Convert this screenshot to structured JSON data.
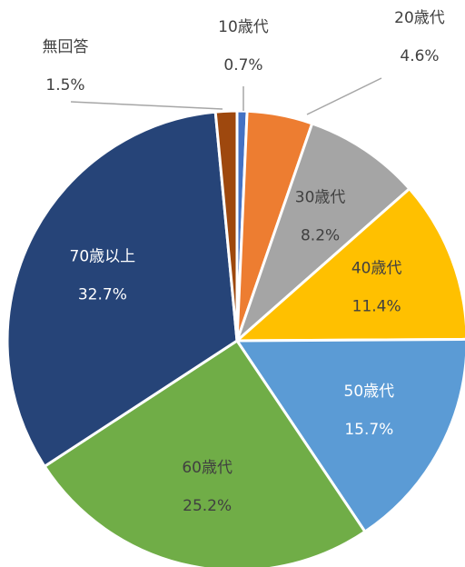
{
  "chart_data": {
    "type": "pie",
    "categories": [
      "10歳代",
      "20歳代",
      "30歳代",
      "40歳代",
      "50歳代",
      "60歳代",
      "70歳以上",
      "無回答"
    ],
    "values": [
      0.7,
      4.6,
      8.2,
      11.4,
      15.7,
      25.2,
      32.7,
      1.5
    ],
    "value_labels": [
      "0.7%",
      "4.6%",
      "8.2%",
      "11.4%",
      "15.7%",
      "25.2%",
      "32.7%",
      "1.5%"
    ],
    "colors": [
      "#4472c4",
      "#ed7d31",
      "#a5a5a5",
      "#ffc000",
      "#5b9bd5",
      "#70ad47",
      "#264478",
      "#9e480e"
    ]
  }
}
